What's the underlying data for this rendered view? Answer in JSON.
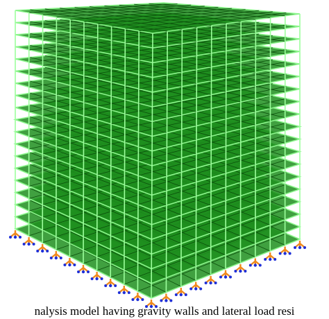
{
  "caption": "nalysis model having gravity walls and lateral load resi"
}
